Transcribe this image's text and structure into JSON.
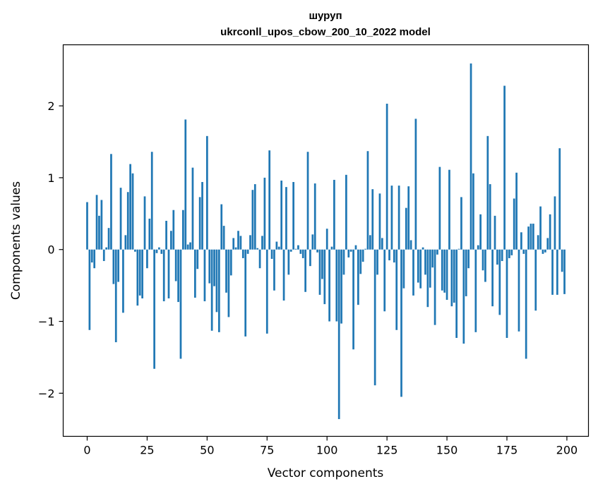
{
  "chart_data": {
    "type": "bar",
    "title_line1": "шуруп",
    "title_line2": "ukrconll_upos_cbow_200_10_2022 model",
    "xlabel": "Vector components",
    "ylabel": "Components values",
    "xlim": [
      -10,
      209
    ],
    "ylim": [
      -2.6,
      2.85
    ],
    "x_ticks": [
      0,
      25,
      50,
      75,
      100,
      125,
      150,
      175,
      200
    ],
    "y_ticks": [
      -2,
      -1,
      0,
      1,
      2
    ],
    "y_tick_labels": [
      "−2",
      "−1",
      "0",
      "1",
      "2"
    ],
    "bar_color": "#1f77b4",
    "grid": false,
    "x": [
      0,
      1,
      2,
      3,
      4,
      5,
      6,
      7,
      8,
      9,
      10,
      11,
      12,
      13,
      14,
      15,
      16,
      17,
      18,
      19,
      20,
      21,
      22,
      23,
      24,
      25,
      26,
      27,
      28,
      29,
      30,
      31,
      32,
      33,
      34,
      35,
      36,
      37,
      38,
      39,
      40,
      41,
      42,
      43,
      44,
      45,
      46,
      47,
      48,
      49,
      50,
      51,
      52,
      53,
      54,
      55,
      56,
      57,
      58,
      59,
      60,
      61,
      62,
      63,
      64,
      65,
      66,
      67,
      68,
      69,
      70,
      71,
      72,
      73,
      74,
      75,
      76,
      77,
      78,
      79,
      80,
      81,
      82,
      83,
      84,
      85,
      86,
      87,
      88,
      89,
      90,
      91,
      92,
      93,
      94,
      95,
      96,
      97,
      98,
      99,
      100,
      101,
      102,
      103,
      104,
      105,
      106,
      107,
      108,
      109,
      110,
      111,
      112,
      113,
      114,
      115,
      116,
      117,
      118,
      119,
      120,
      121,
      122,
      123,
      124,
      125,
      126,
      127,
      128,
      129,
      130,
      131,
      132,
      133,
      134,
      135,
      136,
      137,
      138,
      139,
      140,
      141,
      142,
      143,
      144,
      145,
      146,
      147,
      148,
      149,
      150,
      151,
      152,
      153,
      154,
      155,
      156,
      157,
      158,
      159,
      160,
      161,
      162,
      163,
      164,
      165,
      166,
      167,
      168,
      169,
      170,
      171,
      172,
      173,
      174,
      175,
      176,
      177,
      178,
      179,
      180,
      181,
      182,
      183,
      184,
      185,
      186,
      187,
      188,
      189,
      190,
      191,
      192,
      193,
      194,
      195,
      196,
      197,
      198,
      199
    ],
    "values": [
      0.66,
      -1.12,
      -0.18,
      -0.26,
      0.76,
      0.47,
      0.69,
      -0.16,
      0.03,
      0.3,
      1.33,
      -0.48,
      -1.29,
      -0.45,
      0.86,
      -0.88,
      0.2,
      0.8,
      1.19,
      1.06,
      -0.03,
      -0.78,
      -0.64,
      -0.68,
      0.74,
      -0.26,
      0.43,
      1.36,
      -1.66,
      -0.05,
      0.03,
      -0.06,
      -0.72,
      0.4,
      -0.68,
      0.26,
      0.55,
      -0.44,
      -0.73,
      -1.52,
      0.55,
      1.81,
      0.07,
      0.1,
      1.14,
      -0.67,
      -0.27,
      0.73,
      0.94,
      -0.72,
      1.58,
      -0.47,
      -1.13,
      -0.51,
      -0.87,
      -1.15,
      0.63,
      0.33,
      -0.6,
      -0.94,
      -0.36,
      0.16,
      0.03,
      0.26,
      0.19,
      -0.12,
      -1.21,
      -0.06,
      0.2,
      0.83,
      0.91,
      0.02,
      -0.26,
      0.19,
      1.0,
      -1.17,
      1.38,
      -0.13,
      -0.57,
      0.11,
      0.04,
      0.96,
      -0.71,
      0.87,
      -0.35,
      -0.03,
      0.94,
      0.01,
      0.06,
      -0.06,
      -0.12,
      -0.59,
      1.36,
      -0.23,
      0.21,
      0.92,
      -0.04,
      -0.63,
      -0.41,
      -0.76,
      0.29,
      -1.0,
      0.04,
      0.97,
      -1.0,
      -2.36,
      -1.03,
      -0.35,
      1.04,
      -0.11,
      -0.03,
      -1.39,
      0.06,
      -0.77,
      -0.34,
      -0.17,
      0.01,
      1.37,
      0.2,
      0.84,
      -1.89,
      -0.35,
      0.78,
      0.16,
      -0.86,
      2.03,
      -0.15,
      0.89,
      -0.18,
      -1.12,
      0.89,
      -2.05,
      -0.54,
      0.58,
      0.88,
      0.13,
      -0.64,
      1.82,
      -0.46,
      -0.54,
      0.03,
      -0.35,
      -0.8,
      -0.53,
      -0.25,
      -1.05,
      -0.07,
      1.15,
      -0.57,
      -0.6,
      -0.7,
      1.11,
      -0.79,
      -0.74,
      -1.23,
      0.01,
      0.73,
      -1.31,
      -0.65,
      -0.26,
      2.59,
      1.06,
      -1.15,
      0.06,
      0.49,
      -0.29,
      -0.45,
      1.58,
      0.91,
      -0.79,
      0.47,
      -0.21,
      -0.91,
      -0.16,
      2.28,
      -1.23,
      -0.12,
      -0.08,
      0.71,
      1.07,
      -1.14,
      0.24,
      -0.06,
      -1.52,
      0.32,
      0.36,
      0.36,
      -0.85,
      0.2,
      0.6,
      -0.06,
      -0.04,
      0.16,
      0.49,
      -0.63,
      0.74,
      -0.63,
      1.41,
      -0.31,
      -0.62
    ]
  }
}
